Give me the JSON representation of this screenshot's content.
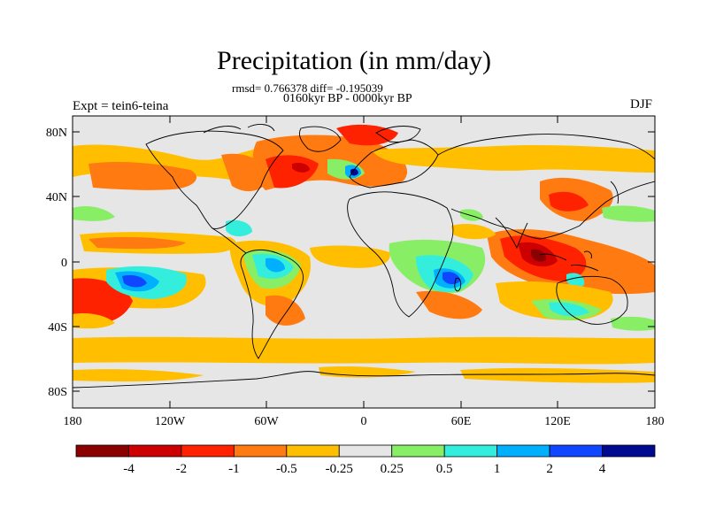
{
  "title": "Precipitation (in mm/day)",
  "stats": "rmsd= 0.766378 diff= -0.195039",
  "period": "0160kyr BP - 0000kyr BP",
  "experiment": "Expt = tein6-teina",
  "season": "DJF",
  "lat_ticks": [
    "80N",
    "40N",
    "0",
    "40S",
    "80S"
  ],
  "lon_ticks": [
    "180",
    "120W",
    "60W",
    "0",
    "60E",
    "120E",
    "180"
  ],
  "colorbar": {
    "labels": [
      "-4",
      "-2",
      "-1",
      "-0.5",
      "-0.25",
      "0.25",
      "0.5",
      "1",
      "2",
      "4"
    ],
    "colors": [
      "#8b0000",
      "#cc0000",
      "#ff2200",
      "#ff7a10",
      "#ffbf00",
      "#e6e6e6",
      "#88ee66",
      "#33eedd",
      "#00b0ff",
      "#1046ff",
      "#000a90"
    ]
  },
  "palette": {
    "neutral": "#e6e6e6",
    "coast": "#000000"
  }
}
